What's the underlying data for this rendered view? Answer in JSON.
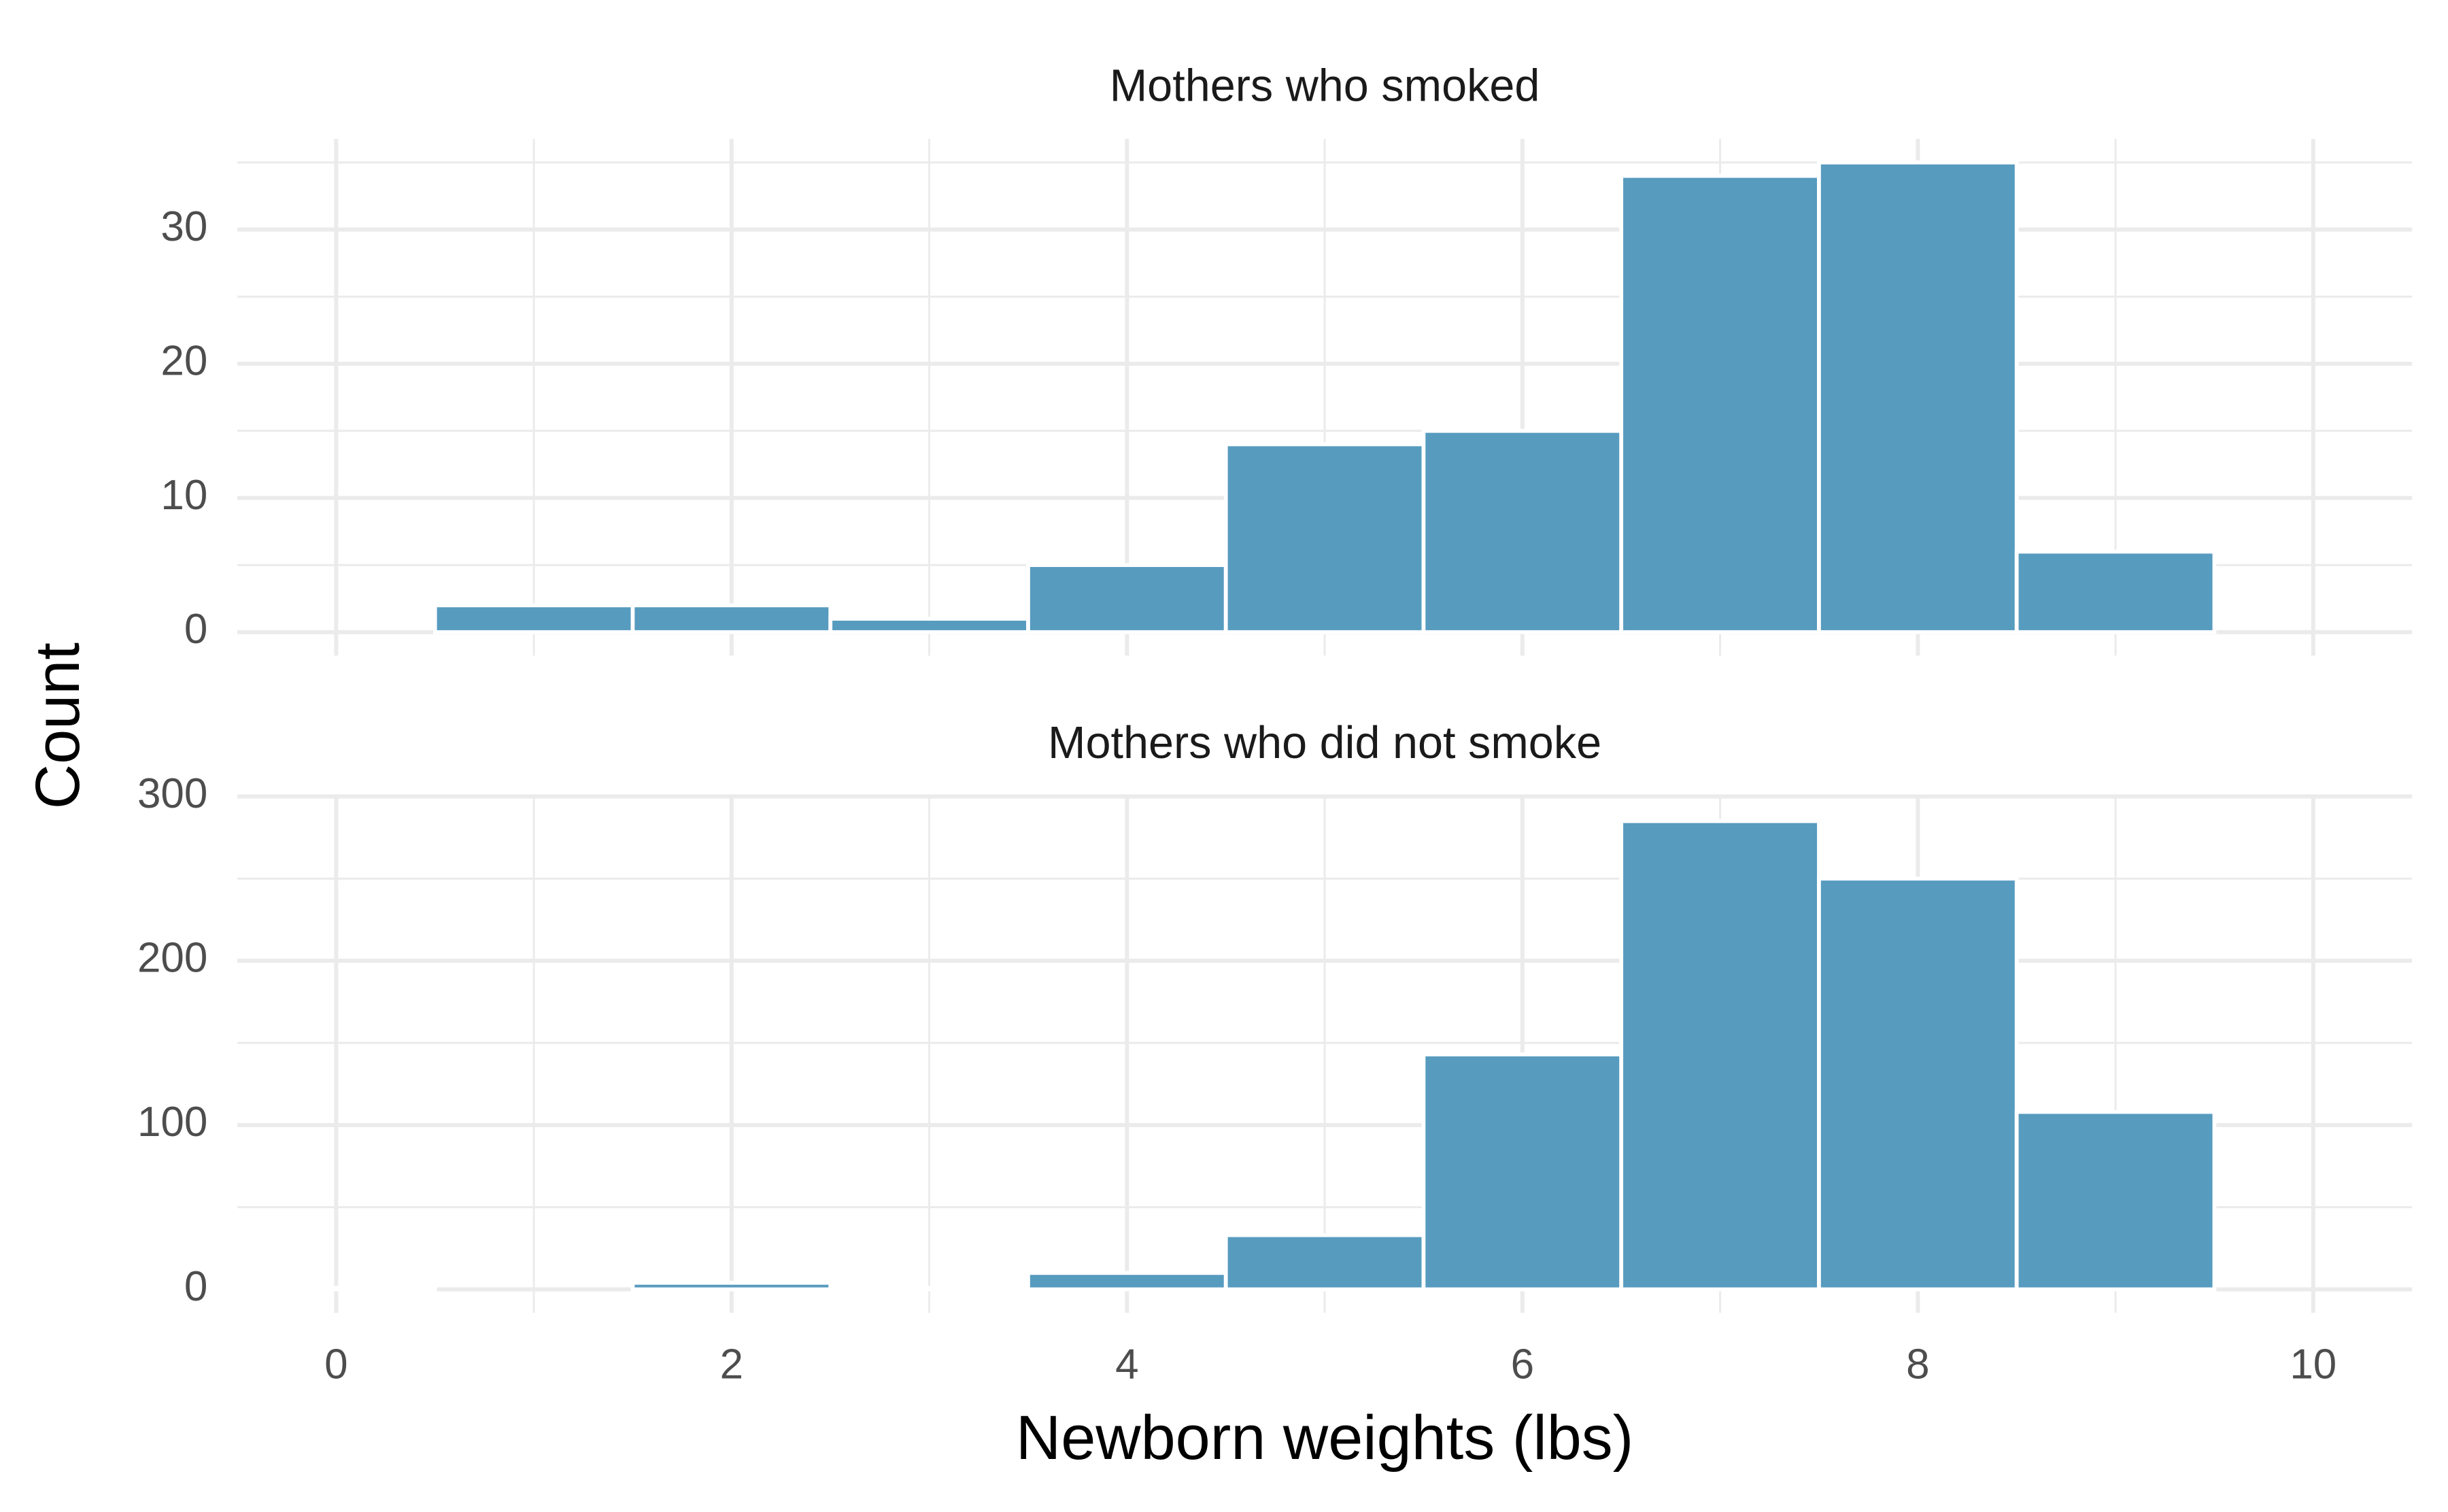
{
  "chart_data": [
    {
      "type": "histogram",
      "title": "Mothers who smoked",
      "ylabel": "Count",
      "bins": [
        -0.5,
        0.5,
        1.5,
        2.5,
        3.5,
        4.5,
        5.5,
        6.5,
        7.5,
        8.5,
        9.5,
        10.5
      ],
      "values": [
        0,
        2,
        2,
        1,
        5,
        14,
        15,
        34,
        35,
        6,
        0
      ],
      "color": "#579bbf",
      "xlim": [
        -0.5,
        10.5
      ],
      "xticks": [
        0,
        2,
        4,
        6,
        8,
        10
      ],
      "minor_xticks": [
        1,
        3,
        5,
        7,
        9
      ],
      "ylim": [
        -1.75,
        36.75
      ],
      "yticks": [
        0,
        10,
        20,
        30
      ],
      "minor_yticks": [
        5,
        15,
        25,
        35
      ],
      "grid": true
    },
    {
      "type": "histogram",
      "title": "Mothers who did not smoke",
      "xlabel": "Newborn weights (lbs)",
      "bins": [
        -0.5,
        0.5,
        1.5,
        2.5,
        3.5,
        4.5,
        5.5,
        6.5,
        7.5,
        8.5,
        9.5,
        10.5
      ],
      "values": [
        1,
        0,
        4,
        1,
        10,
        33,
        143,
        285,
        250,
        108,
        0
      ],
      "color": "#579bbf",
      "xlim": [
        -0.5,
        10.5
      ],
      "xticks": [
        0,
        2,
        4,
        6,
        8,
        10
      ],
      "minor_xticks": [
        1,
        3,
        5,
        7,
        9
      ],
      "ylim": [
        -14.25,
        299.25
      ],
      "yticks": [
        0,
        100,
        200,
        300
      ],
      "minor_yticks": [
        50,
        150,
        250
      ],
      "grid": true
    }
  ]
}
